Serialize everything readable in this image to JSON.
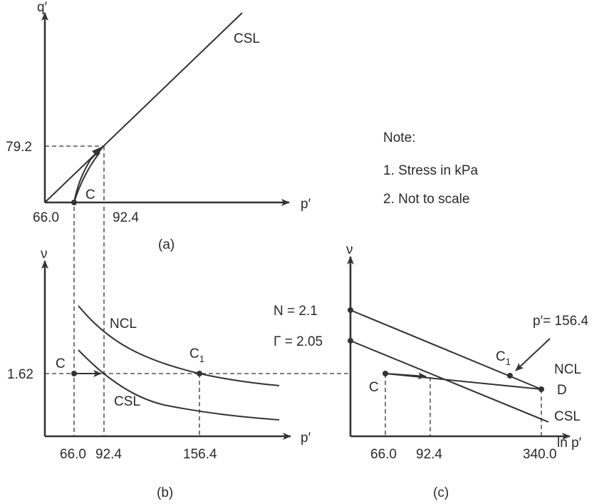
{
  "panel_a": {
    "y_axis": "q′",
    "x_axis": "p′",
    "csl": "CSL",
    "point_c": "C",
    "q_value": "79.2",
    "p_start": "66.0",
    "p_end": "92.4",
    "caption": "(a)"
  },
  "note": {
    "title": "Note:",
    "item1": "1. Stress in kPa",
    "item2": "2. Not to scale"
  },
  "panel_b": {
    "y_axis": "ν",
    "x_axis": "p′",
    "ncl": "NCL",
    "csl": "CSL",
    "point_c": "C",
    "point_c1": "C",
    "point_c1_sub": "1",
    "v_value": "1.62",
    "p1": "66.0",
    "p2": "92.4",
    "p3": "156.4",
    "caption": "(b)"
  },
  "panel_c": {
    "y_axis": "ν",
    "x_axis": "ln p′",
    "n_label": "N = 2.1",
    "gamma_label": "Γ = 2.05",
    "p_callout": "p′= 156.4",
    "point_c1": "C",
    "point_c1_sub": "1",
    "ncl": "NCL",
    "point_d": "D",
    "point_c": "C",
    "csl": "CSL",
    "p1": "66.0",
    "p2": "92.4",
    "p3": "340.0",
    "caption": "(c)"
  }
}
